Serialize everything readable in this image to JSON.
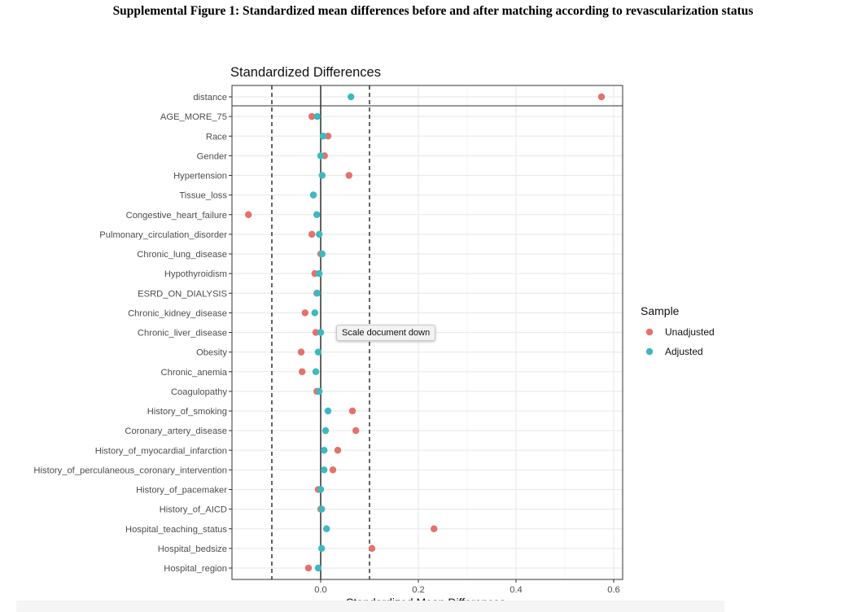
{
  "figure_caption": "Supplemental Figure 1: Standardized mean differences before and after matching according to revascularization status",
  "tooltip": "Scale document down",
  "colors": {
    "unadjusted": "#E4716A",
    "adjusted": "#3DB9C1",
    "grid": "#EBEBEB",
    "panel_border": "#333333"
  },
  "chart_data": {
    "type": "scatter",
    "title": "Standardized Differences",
    "xlabel": "Standardized Mean Differences",
    "ylabel": "",
    "xlim": [
      -0.185,
      0.62
    ],
    "xticks": [
      0.0,
      0.2,
      0.4,
      0.6
    ],
    "xtick_labels": [
      "0.0",
      "0.2",
      "0.4",
      "0.6"
    ],
    "reference_lines": {
      "solid": [
        0
      ],
      "dashed": [
        -0.1,
        0.1
      ]
    },
    "grid": true,
    "legend": {
      "title": "Sample",
      "position": "right"
    },
    "categories": [
      "distance",
      "AGE_MORE_75",
      "Race",
      "Gender",
      "Hypertension",
      "Tissue_loss",
      "Congestive_heart_failure",
      "Pulmonary_circulation_disorder",
      "Chronic_lung_disease",
      "Hypothyroidism",
      "ESRD_ON_DIALYSIS",
      "Chronic_kidney_disease",
      "Chronic_liver_disease",
      "Obesity",
      "Chronic_anemia",
      "Coagulopathy",
      "History_of_smoking",
      "Coronary_artery_disease",
      "History_of_myocardial_infarction",
      "History_of_perculaneous_coronary_intervention",
      "History_of_pacemaker",
      "History_of_AICD",
      "Hospital_teaching_status",
      "Hospital_bedsize",
      "Hospital_region"
    ],
    "series": [
      {
        "name": "Unadjusted",
        "values": [
          0.575,
          -0.018,
          0.015,
          0.008,
          0.058,
          -0.015,
          -0.148,
          -0.018,
          0.0,
          -0.012,
          -0.008,
          -0.032,
          -0.01,
          -0.04,
          -0.038,
          -0.008,
          0.065,
          0.072,
          0.035,
          0.025,
          -0.005,
          0.0,
          0.232,
          0.105,
          -0.025
        ]
      },
      {
        "name": "Adjusted",
        "values": [
          0.062,
          -0.007,
          0.005,
          0.0,
          0.003,
          -0.015,
          -0.008,
          -0.003,
          0.003,
          -0.003,
          -0.007,
          -0.012,
          0.0,
          -0.005,
          -0.01,
          -0.003,
          0.015,
          0.01,
          0.007,
          0.007,
          0.0,
          0.002,
          0.012,
          0.002,
          -0.005
        ]
      }
    ]
  }
}
